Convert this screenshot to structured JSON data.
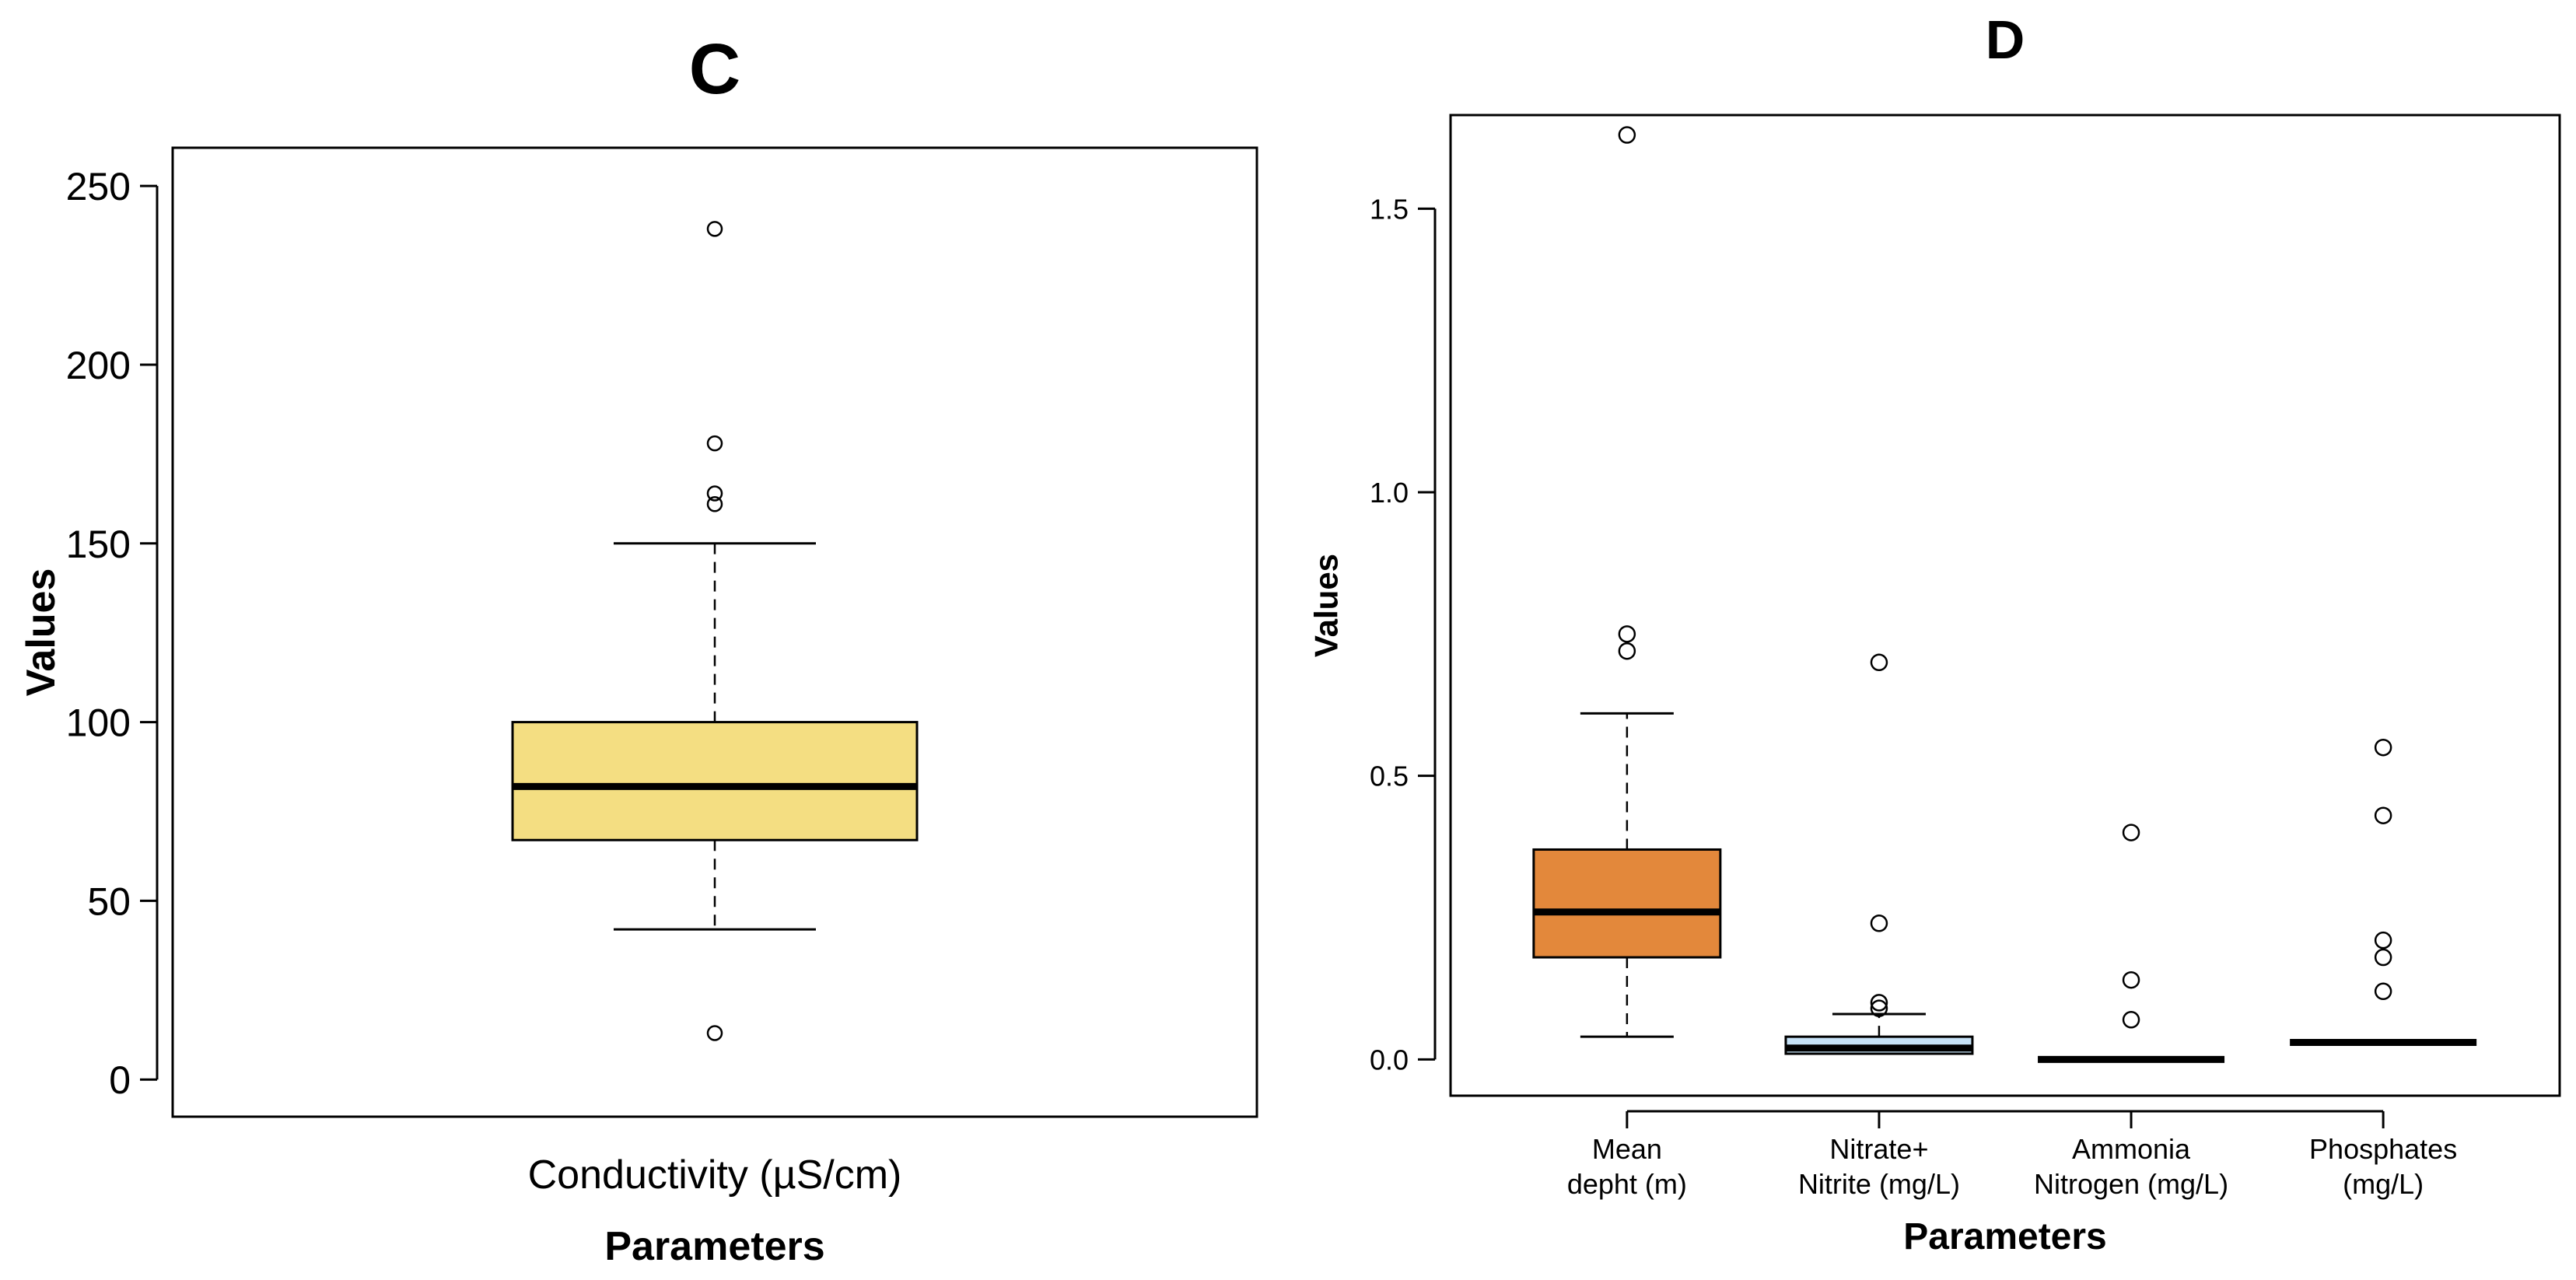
{
  "chart_data": [
    {
      "type": "boxplot",
      "title": "C",
      "xlabel": "Parameters",
      "ylabel": "Values",
      "ylim": [
        -10.4,
        260.7
      ],
      "yticks": [
        0,
        50,
        100,
        150,
        200,
        250
      ],
      "grid": false,
      "boxes": [
        {
          "name": "Conductivity  (µS/cm)",
          "color": "#F4DE82",
          "whisker_low": 42,
          "q1": 67,
          "median": 82,
          "q3": 100,
          "whisker_high": 150,
          "outliers": [
            13,
            161,
            164,
            178,
            238
          ]
        }
      ]
    },
    {
      "type": "boxplot",
      "title": "D",
      "xlabel": "Parameters",
      "ylabel": "Values",
      "ylim": [
        -0.064,
        1.665
      ],
      "yticks": [
        0.0,
        0.5,
        1.0,
        1.5
      ],
      "ytick_labels": [
        "0.0",
        "0.5",
        "1.0",
        "1.5"
      ],
      "grid": false,
      "boxes": [
        {
          "name": [
            "Mean",
            "depht (m)"
          ],
          "color": "#E3883B",
          "whisker_low": 0.04,
          "q1": 0.18,
          "median": 0.26,
          "q3": 0.37,
          "whisker_high": 0.61,
          "outliers": [
            0.72,
            0.75,
            1.63
          ]
        },
        {
          "name": [
            "Nitrate+",
            "Nitrite (mg/L)"
          ],
          "color": "#C6E2F7",
          "whisker_low": 0.01,
          "q1": 0.01,
          "median": 0.02,
          "q3": 0.04,
          "whisker_high": 0.08,
          "outliers": [
            0.09,
            0.1,
            0.24,
            0.7
          ]
        },
        {
          "name": [
            "Ammonia",
            "Nitrogen (mg/L)"
          ],
          "color": "#FFFFFF",
          "whisker_low": 0,
          "q1": 0,
          "median": 0,
          "q3": 0,
          "whisker_high": 0,
          "outliers": [
            0.07,
            0.14,
            0.4
          ]
        },
        {
          "name": [
            "Phosphates",
            "(mg/L)"
          ],
          "color": "#FFFFFF",
          "whisker_low": 0.03,
          "q1": 0.03,
          "median": 0.03,
          "q3": 0.03,
          "whisker_high": 0.03,
          "outliers": [
            0.12,
            0.18,
            0.21,
            0.43,
            0.55
          ]
        }
      ]
    }
  ]
}
